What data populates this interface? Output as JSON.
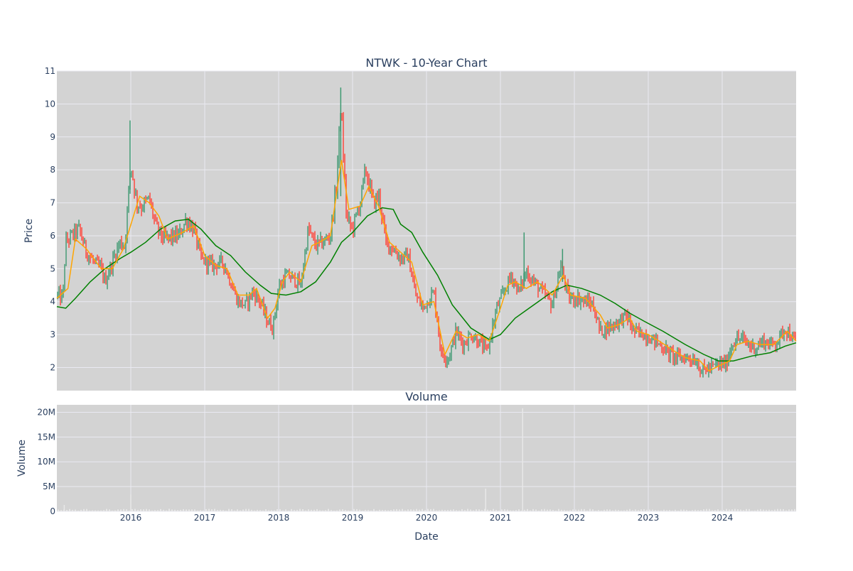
{
  "colors": {
    "background": "#ffffff",
    "plot_bg": "#d3d3d3",
    "grid": "#eaeaf2",
    "text": "#2a3f5f",
    "candle_up": "#3d9970",
    "candle_down": "#ff4136",
    "ma_short": "#ffa500",
    "ma_long": "#008000",
    "volume_bar": "#e8e8e8"
  },
  "chart_data": [
    {
      "type": "candlestick",
      "title": "NTWK - 10-Year Chart",
      "ylabel": "Price",
      "xlabel": "",
      "ylim": [
        1.3,
        11
      ],
      "yticks": [
        2,
        3,
        4,
        5,
        6,
        7,
        8,
        9,
        10,
        11
      ],
      "xlim": [
        2015.0,
        2025.0
      ],
      "grid": true,
      "series": [
        {
          "kind": "close",
          "points": [
            [
              2015.0,
              4.2
            ],
            [
              2015.08,
              4.1
            ],
            [
              2015.12,
              5.8
            ],
            [
              2015.2,
              6.0
            ],
            [
              2015.3,
              6.2
            ],
            [
              2015.4,
              5.5
            ],
            [
              2015.5,
              5.2
            ],
            [
              2015.6,
              5.0
            ],
            [
              2015.65,
              4.6
            ],
            [
              2015.75,
              5.2
            ],
            [
              2015.85,
              5.8
            ],
            [
              2015.92,
              5.7
            ],
            [
              2016.0,
              8.2
            ],
            [
              2016.08,
              7.0
            ],
            [
              2016.15,
              6.9
            ],
            [
              2016.25,
              7.1
            ],
            [
              2016.35,
              6.2
            ],
            [
              2016.45,
              5.9
            ],
            [
              2016.55,
              5.95
            ],
            [
              2016.65,
              6.0
            ],
            [
              2016.75,
              6.5
            ],
            [
              2016.85,
              6.2
            ],
            [
              2016.95,
              5.3
            ],
            [
              2017.1,
              5.1
            ],
            [
              2017.25,
              5.2
            ],
            [
              2017.35,
              4.6
            ],
            [
              2017.45,
              4.0
            ],
            [
              2017.55,
              3.9
            ],
            [
              2017.65,
              4.3
            ],
            [
              2017.75,
              4.0
            ],
            [
              2017.85,
              3.4
            ],
            [
              2017.92,
              3.2
            ],
            [
              2018.0,
              4.4
            ],
            [
              2018.1,
              4.8
            ],
            [
              2018.2,
              4.7
            ],
            [
              2018.3,
              4.5
            ],
            [
              2018.4,
              6.2
            ],
            [
              2018.5,
              5.7
            ],
            [
              2018.6,
              5.8
            ],
            [
              2018.7,
              6.0
            ],
            [
              2018.78,
              7.5
            ],
            [
              2018.84,
              10.0
            ],
            [
              2018.92,
              6.5
            ],
            [
              2019.0,
              6.2
            ],
            [
              2019.1,
              7.0
            ],
            [
              2019.18,
              8.0
            ],
            [
              2019.28,
              7.0
            ],
            [
              2019.36,
              7.2
            ],
            [
              2019.45,
              5.8
            ],
            [
              2019.55,
              5.6
            ],
            [
              2019.65,
              5.3
            ],
            [
              2019.75,
              5.4
            ],
            [
              2019.85,
              4.2
            ],
            [
              2019.95,
              3.8
            ],
            [
              2020.1,
              4.3
            ],
            [
              2020.2,
              2.4
            ],
            [
              2020.3,
              2.3
            ],
            [
              2020.4,
              3.1
            ],
            [
              2020.5,
              2.7
            ],
            [
              2020.6,
              3.0
            ],
            [
              2020.7,
              2.8
            ],
            [
              2020.82,
              2.5
            ],
            [
              2020.95,
              3.8
            ],
            [
              2021.05,
              4.3
            ],
            [
              2021.15,
              4.8
            ],
            [
              2021.25,
              4.3
            ],
            [
              2021.35,
              4.9
            ],
            [
              2021.45,
              4.6
            ],
            [
              2021.6,
              4.2
            ],
            [
              2021.7,
              3.9
            ],
            [
              2021.82,
              5.1
            ],
            [
              2021.92,
              4.1
            ],
            [
              2022.05,
              4.1
            ],
            [
              2022.15,
              4.0
            ],
            [
              2022.25,
              3.9
            ],
            [
              2022.35,
              3.1
            ],
            [
              2022.45,
              3.2
            ],
            [
              2022.6,
              3.4
            ],
            [
              2022.7,
              3.6
            ],
            [
              2022.8,
              3.1
            ],
            [
              2022.95,
              3.0
            ],
            [
              2023.1,
              2.8
            ],
            [
              2023.2,
              2.6
            ],
            [
              2023.3,
              2.4
            ],
            [
              2023.4,
              2.3
            ],
            [
              2023.55,
              2.3
            ],
            [
              2023.65,
              2.2
            ],
            [
              2023.72,
              1.9
            ],
            [
              2023.85,
              2.0
            ],
            [
              2023.95,
              2.1
            ],
            [
              2024.05,
              2.1
            ],
            [
              2024.15,
              2.8
            ],
            [
              2024.25,
              2.9
            ],
            [
              2024.35,
              2.7
            ],
            [
              2024.45,
              2.6
            ],
            [
              2024.55,
              2.8
            ],
            [
              2024.65,
              2.7
            ],
            [
              2024.75,
              2.8
            ],
            [
              2024.85,
              3.2
            ],
            [
              2024.95,
              2.9
            ],
            [
              2025.0,
              2.7
            ]
          ]
        },
        {
          "kind": "short_ma",
          "points": [
            [
              2015.0,
              4.1
            ],
            [
              2015.15,
              4.4
            ],
            [
              2015.25,
              5.9
            ],
            [
              2015.4,
              5.6
            ],
            [
              2015.6,
              5.0
            ],
            [
              2015.75,
              5.0
            ],
            [
              2015.9,
              5.6
            ],
            [
              2016.05,
              6.7
            ],
            [
              2016.12,
              7.2
            ],
            [
              2016.25,
              7.0
            ],
            [
              2016.38,
              6.6
            ],
            [
              2016.5,
              5.9
            ],
            [
              2016.7,
              6.1
            ],
            [
              2016.85,
              6.3
            ],
            [
              2017.0,
              5.4
            ],
            [
              2017.15,
              5.1
            ],
            [
              2017.3,
              5.0
            ],
            [
              2017.45,
              4.2
            ],
            [
              2017.6,
              4.2
            ],
            [
              2017.7,
              4.4
            ],
            [
              2017.85,
              3.5
            ],
            [
              2017.95,
              3.8
            ],
            [
              2018.05,
              4.6
            ],
            [
              2018.15,
              4.9
            ],
            [
              2018.3,
              4.6
            ],
            [
              2018.45,
              5.7
            ],
            [
              2018.55,
              5.8
            ],
            [
              2018.7,
              6.0
            ],
            [
              2018.85,
              8.3
            ],
            [
              2018.95,
              6.8
            ],
            [
              2019.1,
              6.9
            ],
            [
              2019.22,
              7.5
            ],
            [
              2019.35,
              6.9
            ],
            [
              2019.5,
              5.8
            ],
            [
              2019.65,
              5.5
            ],
            [
              2019.8,
              5.2
            ],
            [
              2019.95,
              3.9
            ],
            [
              2020.1,
              4.0
            ],
            [
              2020.25,
              2.4
            ],
            [
              2020.4,
              3.1
            ],
            [
              2020.55,
              2.9
            ],
            [
              2020.7,
              3.0
            ],
            [
              2020.85,
              2.8
            ],
            [
              2021.0,
              3.8
            ],
            [
              2021.1,
              4.5
            ],
            [
              2021.2,
              4.6
            ],
            [
              2021.35,
              4.4
            ],
            [
              2021.5,
              4.6
            ],
            [
              2021.7,
              4.2
            ],
            [
              2021.85,
              4.8
            ],
            [
              2021.95,
              4.2
            ],
            [
              2022.15,
              4.1
            ],
            [
              2022.35,
              3.6
            ],
            [
              2022.45,
              3.2
            ],
            [
              2022.6,
              3.3
            ],
            [
              2022.75,
              3.5
            ],
            [
              2022.85,
              3.1
            ],
            [
              2023.0,
              3.0
            ],
            [
              2023.15,
              2.8
            ],
            [
              2023.35,
              2.5
            ],
            [
              2023.5,
              2.3
            ],
            [
              2023.7,
              2.2
            ],
            [
              2023.82,
              1.9
            ],
            [
              2024.0,
              2.1
            ],
            [
              2024.1,
              2.2
            ],
            [
              2024.2,
              2.7
            ],
            [
              2024.35,
              2.8
            ],
            [
              2024.5,
              2.7
            ],
            [
              2024.7,
              2.7
            ],
            [
              2024.88,
              3.1
            ],
            [
              2025.0,
              2.8
            ]
          ]
        },
        {
          "kind": "long_ma",
          "points": [
            [
              2015.0,
              3.85
            ],
            [
              2015.12,
              3.8
            ],
            [
              2015.25,
              4.1
            ],
            [
              2015.45,
              4.6
            ],
            [
              2015.65,
              5.0
            ],
            [
              2015.85,
              5.3
            ],
            [
              2016.0,
              5.5
            ],
            [
              2016.2,
              5.8
            ],
            [
              2016.4,
              6.2
            ],
            [
              2016.6,
              6.45
            ],
            [
              2016.78,
              6.5
            ],
            [
              2016.95,
              6.2
            ],
            [
              2017.15,
              5.7
            ],
            [
              2017.35,
              5.4
            ],
            [
              2017.55,
              4.9
            ],
            [
              2017.75,
              4.5
            ],
            [
              2017.9,
              4.25
            ],
            [
              2018.1,
              4.2
            ],
            [
              2018.3,
              4.3
            ],
            [
              2018.5,
              4.6
            ],
            [
              2018.7,
              5.2
            ],
            [
              2018.85,
              5.8
            ],
            [
              2019.0,
              6.1
            ],
            [
              2019.2,
              6.6
            ],
            [
              2019.4,
              6.85
            ],
            [
              2019.55,
              6.8
            ],
            [
              2019.65,
              6.35
            ],
            [
              2019.8,
              6.1
            ],
            [
              2019.95,
              5.5
            ],
            [
              2020.15,
              4.8
            ],
            [
              2020.35,
              3.9
            ],
            [
              2020.6,
              3.2
            ],
            [
              2020.85,
              2.85
            ],
            [
              2021.0,
              3.0
            ],
            [
              2021.2,
              3.5
            ],
            [
              2021.45,
              3.9
            ],
            [
              2021.7,
              4.3
            ],
            [
              2021.9,
              4.5
            ],
            [
              2022.1,
              4.4
            ],
            [
              2022.35,
              4.2
            ],
            [
              2022.55,
              3.95
            ],
            [
              2022.75,
              3.65
            ],
            [
              2022.95,
              3.4
            ],
            [
              2023.2,
              3.1
            ],
            [
              2023.5,
              2.7
            ],
            [
              2023.75,
              2.4
            ],
            [
              2023.95,
              2.2
            ],
            [
              2024.15,
              2.2
            ],
            [
              2024.4,
              2.35
            ],
            [
              2024.65,
              2.45
            ],
            [
              2024.85,
              2.65
            ],
            [
              2025.0,
              2.75
            ]
          ]
        }
      ]
    },
    {
      "type": "bar",
      "title": "Volume",
      "ylabel": "Volume",
      "xlabel": "Date",
      "ylim": [
        0,
        21500000
      ],
      "yticks": [
        0,
        5000000,
        10000000,
        15000000,
        20000000
      ],
      "ytick_labels": [
        "0",
        "5M",
        "10M",
        "15M",
        "20M"
      ],
      "xticks": [
        2016,
        2017,
        2018,
        2019,
        2020,
        2021,
        2022,
        2023,
        2024
      ],
      "xtick_labels": [
        "2016",
        "2017",
        "2018",
        "2019",
        "2020",
        "2021",
        "2022",
        "2023",
        "2024"
      ],
      "spikes": [
        [
          2015.1,
          1300000
        ],
        [
          2016.0,
          3400000
        ],
        [
          2020.8,
          4600000
        ],
        [
          2021.3,
          20800000
        ]
      ]
    }
  ]
}
